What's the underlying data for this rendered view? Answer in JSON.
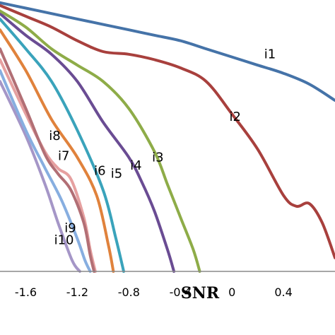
{
  "chart_data": {
    "type": "line",
    "xlabel": "SNR",
    "ylabel": "",
    "xlim": [
      -1.8,
      0.8
    ],
    "ylim": [
      0,
      1
    ],
    "grid": false,
    "legend": "none",
    "xticks": [
      "-1.6",
      "-1.2",
      "-0.8",
      "-0.4",
      "0",
      "0.4"
    ],
    "xtick_values": [
      -1.6,
      -1.2,
      -0.8,
      -0.4,
      0,
      0.4
    ],
    "series": [
      {
        "name": "i1",
        "color": "#4573a8",
        "label_at": [
          0.25,
          0.785
        ],
        "x": [
          -1.8,
          -1.6,
          -1.4,
          -1.2,
          -1.0,
          -0.8,
          -0.6,
          -0.4,
          -0.2,
          0.0,
          0.2,
          0.4,
          0.6,
          0.8
        ],
        "y": [
          0.99,
          0.97,
          0.95,
          0.93,
          0.91,
          0.89,
          0.87,
          0.85,
          0.82,
          0.79,
          0.76,
          0.73,
          0.69,
          0.63
        ]
      },
      {
        "name": "i2",
        "color": "#a8403d",
        "label_at": [
          -0.02,
          0.555
        ],
        "x": [
          -1.8,
          -1.6,
          -1.4,
          -1.2,
          -1.0,
          -0.8,
          -0.6,
          -0.4,
          -0.2,
          0.0,
          0.2,
          0.4,
          0.5,
          0.6,
          0.7,
          0.8
        ],
        "y": [
          0.98,
          0.94,
          0.9,
          0.85,
          0.81,
          0.8,
          0.78,
          0.75,
          0.7,
          0.58,
          0.45,
          0.28,
          0.24,
          0.25,
          0.18,
          0.05
        ]
      },
      {
        "name": "i3",
        "color": "#8eac48",
        "label_at": [
          -0.62,
          0.405
        ],
        "x": [
          -1.8,
          -1.6,
          -1.4,
          -1.2,
          -1.0,
          -0.8,
          -0.6,
          -0.5,
          -0.4,
          -0.3,
          -0.25
        ],
        "y": [
          0.96,
          0.9,
          0.82,
          0.76,
          0.7,
          0.6,
          0.44,
          0.32,
          0.2,
          0.08,
          0.0
        ]
      },
      {
        "name": "i4",
        "color": "#6a4c93",
        "label_at": [
          -0.79,
          0.375
        ],
        "x": [
          -1.8,
          -1.6,
          -1.4,
          -1.2,
          -1.0,
          -0.8,
          -0.7,
          -0.6,
          -0.5,
          -0.45
        ],
        "y": [
          0.95,
          0.87,
          0.8,
          0.7,
          0.55,
          0.42,
          0.33,
          0.22,
          0.08,
          0.0
        ]
      },
      {
        "name": "i5",
        "color": "#3aa3bb",
        "label_at": [
          -0.94,
          0.345
        ],
        "x": [
          -1.8,
          -1.6,
          -1.4,
          -1.2,
          -1.0,
          -0.9,
          -0.84
        ],
        "y": [
          0.93,
          0.82,
          0.7,
          0.52,
          0.3,
          0.12,
          0.0
        ]
      },
      {
        "name": "i6",
        "color": "#e0823c",
        "label_at": [
          -1.07,
          0.355
        ],
        "x": [
          -1.8,
          -1.6,
          -1.4,
          -1.2,
          -1.05,
          -0.96,
          -0.92
        ],
        "y": [
          0.89,
          0.74,
          0.56,
          0.42,
          0.28,
          0.1,
          0.0
        ]
      },
      {
        "name": "i7",
        "color": "#b26f75",
        "label_at": [
          -1.35,
          0.41
        ],
        "x": [
          -1.8,
          -1.6,
          -1.45,
          -1.35,
          -1.25,
          -1.15,
          -1.1,
          -1.07
        ],
        "y": [
          0.82,
          0.6,
          0.43,
          0.36,
          0.3,
          0.18,
          0.06,
          0.0
        ]
      },
      {
        "name": "i8",
        "color": "#e6a0a0",
        "label_at": [
          -1.42,
          0.485
        ],
        "x": [
          -1.8,
          -1.6,
          -1.45,
          -1.35,
          -1.25,
          -1.15,
          -1.1,
          -1.06
        ],
        "y": [
          0.78,
          0.58,
          0.44,
          0.38,
          0.34,
          0.2,
          0.08,
          0.0
        ]
      },
      {
        "name": "i9",
        "color": "#87aee0",
        "label_at": [
          -1.3,
          0.145
        ],
        "x": [
          -1.8,
          -1.6,
          -1.45,
          -1.32,
          -1.2,
          -1.14,
          -1.1
        ],
        "y": [
          0.74,
          0.52,
          0.38,
          0.26,
          0.12,
          0.04,
          0.0
        ]
      },
      {
        "name": "i10",
        "color": "#a596c7",
        "label_at": [
          -1.38,
          0.1
        ],
        "x": [
          -1.8,
          -1.6,
          -1.45,
          -1.35,
          -1.24,
          -1.18
        ],
        "y": [
          0.7,
          0.5,
          0.32,
          0.18,
          0.04,
          0.0
        ]
      }
    ]
  }
}
